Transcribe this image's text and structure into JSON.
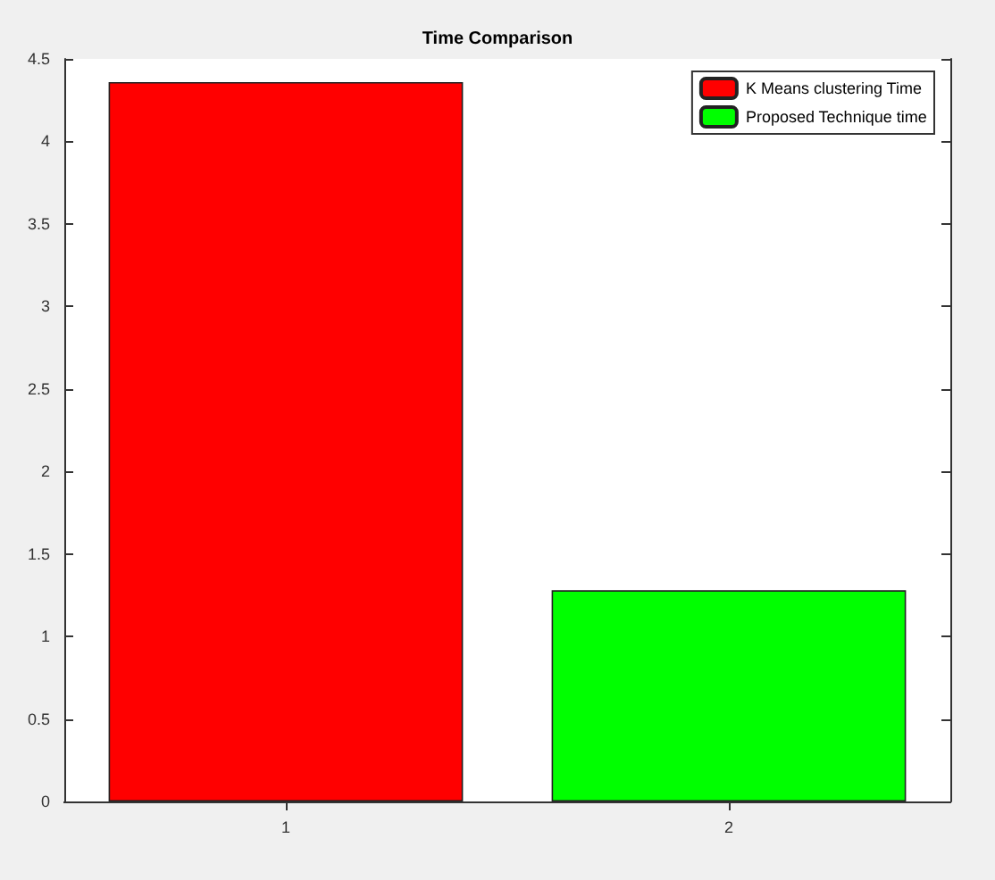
{
  "chart_data": {
    "type": "bar",
    "title": "Time Comparison",
    "categories": [
      "1",
      "2"
    ],
    "series": [
      {
        "name": "K Means clustering Time",
        "color": "#ff0000",
        "values": [
          4.36,
          null
        ]
      },
      {
        "name": "Proposed Technique time",
        "color": "#00ff00",
        "values": [
          null,
          1.28
        ]
      }
    ],
    "ylim": [
      0,
      4.5
    ],
    "yticks": [
      0,
      0.5,
      1,
      1.5,
      2,
      2.5,
      3,
      3.5,
      4,
      4.5
    ],
    "grid": false,
    "legend": "top right"
  }
}
